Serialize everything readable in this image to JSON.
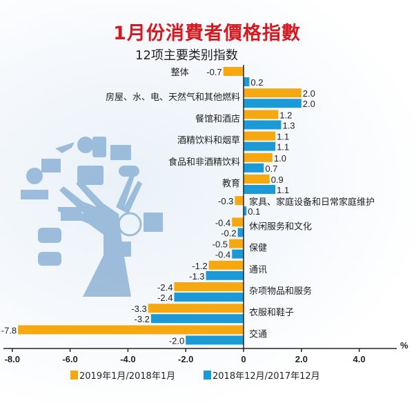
{
  "chart_data": {
    "type": "bar",
    "orientation": "horizontal",
    "title": "1月份消費者價格指數",
    "subtitle": "12项主要类别指数",
    "unit_label": "%",
    "categories": [
      "整体",
      "房屋、水、电、天然气和其他燃料",
      "餐馆和酒店",
      "酒精饮料和烟草",
      "食品和非酒精饮料",
      "教育",
      "家具、家庭设备和日常家庭维护",
      "休闲服务和文化",
      "保健",
      "通讯",
      "杂项物品和服务",
      "衣服和鞋子",
      "交通"
    ],
    "series": [
      {
        "name": "2019年1月/2018年1月",
        "color": "#f5a80f",
        "values": [
          -0.7,
          2.0,
          1.2,
          1.1,
          1.0,
          0.9,
          -0.3,
          -0.4,
          -0.5,
          -1.2,
          -2.4,
          -3.3,
          -7.8
        ],
        "labels": [
          "-0.7",
          "2.0",
          "1.2",
          "1.1",
          "1.0",
          "0.9",
          "-0.3",
          "-0.4",
          "-0.5",
          "-1.2",
          "-2.4",
          "-3.3",
          "-7.8"
        ]
      },
      {
        "name": "2018年12月/2017年12月",
        "color": "#1c9ad6",
        "values": [
          0.2,
          2.0,
          1.3,
          1.1,
          0.7,
          1.1,
          0.1,
          -0.2,
          -0.4,
          -1.3,
          -2.4,
          -3.2,
          -2.0
        ],
        "labels": [
          "0.2",
          "2.0",
          "1.3",
          "1.1",
          "0.7",
          "1.1",
          "0.1",
          "-0.2",
          "-0.4",
          "-1.3",
          "-2.4",
          "-3.2",
          "-2.0"
        ]
      }
    ],
    "xlim": [
      -8.0,
      5.5
    ],
    "xticks": [
      -8.0,
      -6.0,
      -4.0,
      -2.0,
      0,
      2.0,
      4.0
    ],
    "xtick_labels": [
      "-8.0",
      "-6.0",
      "-4.0",
      "-2.0",
      "0",
      "2.0",
      "4.0"
    ],
    "grid": false,
    "legend_position": "bottom"
  }
}
